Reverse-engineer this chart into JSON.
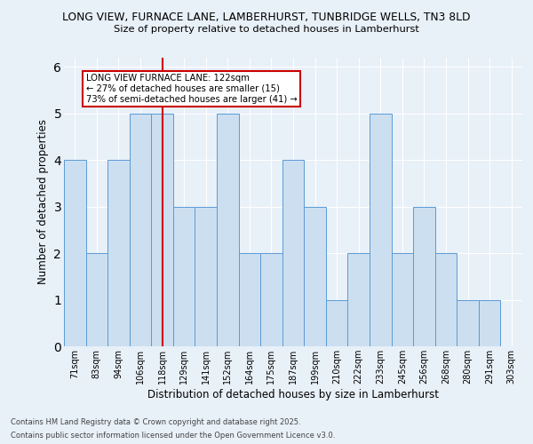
{
  "title_line1": "LONG VIEW, FURNACE LANE, LAMBERHURST, TUNBRIDGE WELLS, TN3 8LD",
  "title_line2": "Size of property relative to detached houses in Lamberhurst",
  "xlabel": "Distribution of detached houses by size in Lamberhurst",
  "ylabel": "Number of detached properties",
  "categories": [
    "71sqm",
    "83sqm",
    "94sqm",
    "106sqm",
    "118sqm",
    "129sqm",
    "141sqm",
    "152sqm",
    "164sqm",
    "175sqm",
    "187sqm",
    "199sqm",
    "210sqm",
    "222sqm",
    "233sqm",
    "245sqm",
    "256sqm",
    "268sqm",
    "280sqm",
    "291sqm",
    "303sqm"
  ],
  "values": [
    4,
    2,
    4,
    5,
    5,
    3,
    3,
    5,
    2,
    2,
    4,
    3,
    1,
    2,
    5,
    2,
    3,
    2,
    1,
    1,
    0
  ],
  "bar_color": "#ccdff0",
  "bar_edge_color": "#5b9bd5",
  "highlight_index": 4,
  "highlight_color": "#cc0000",
  "annotation_text": "LONG VIEW FURNACE LANE: 122sqm\n← 27% of detached houses are smaller (15)\n73% of semi-detached houses are larger (41) →",
  "annotation_box_color": "#ffffff",
  "annotation_box_edge": "#cc0000",
  "footer_line1": "Contains HM Land Registry data © Crown copyright and database right 2025.",
  "footer_line2": "Contains public sector information licensed under the Open Government Licence v3.0.",
  "ylim": [
    0,
    6.2
  ],
  "background_color": "#e8f0f8",
  "grid_color": "#ffffff"
}
